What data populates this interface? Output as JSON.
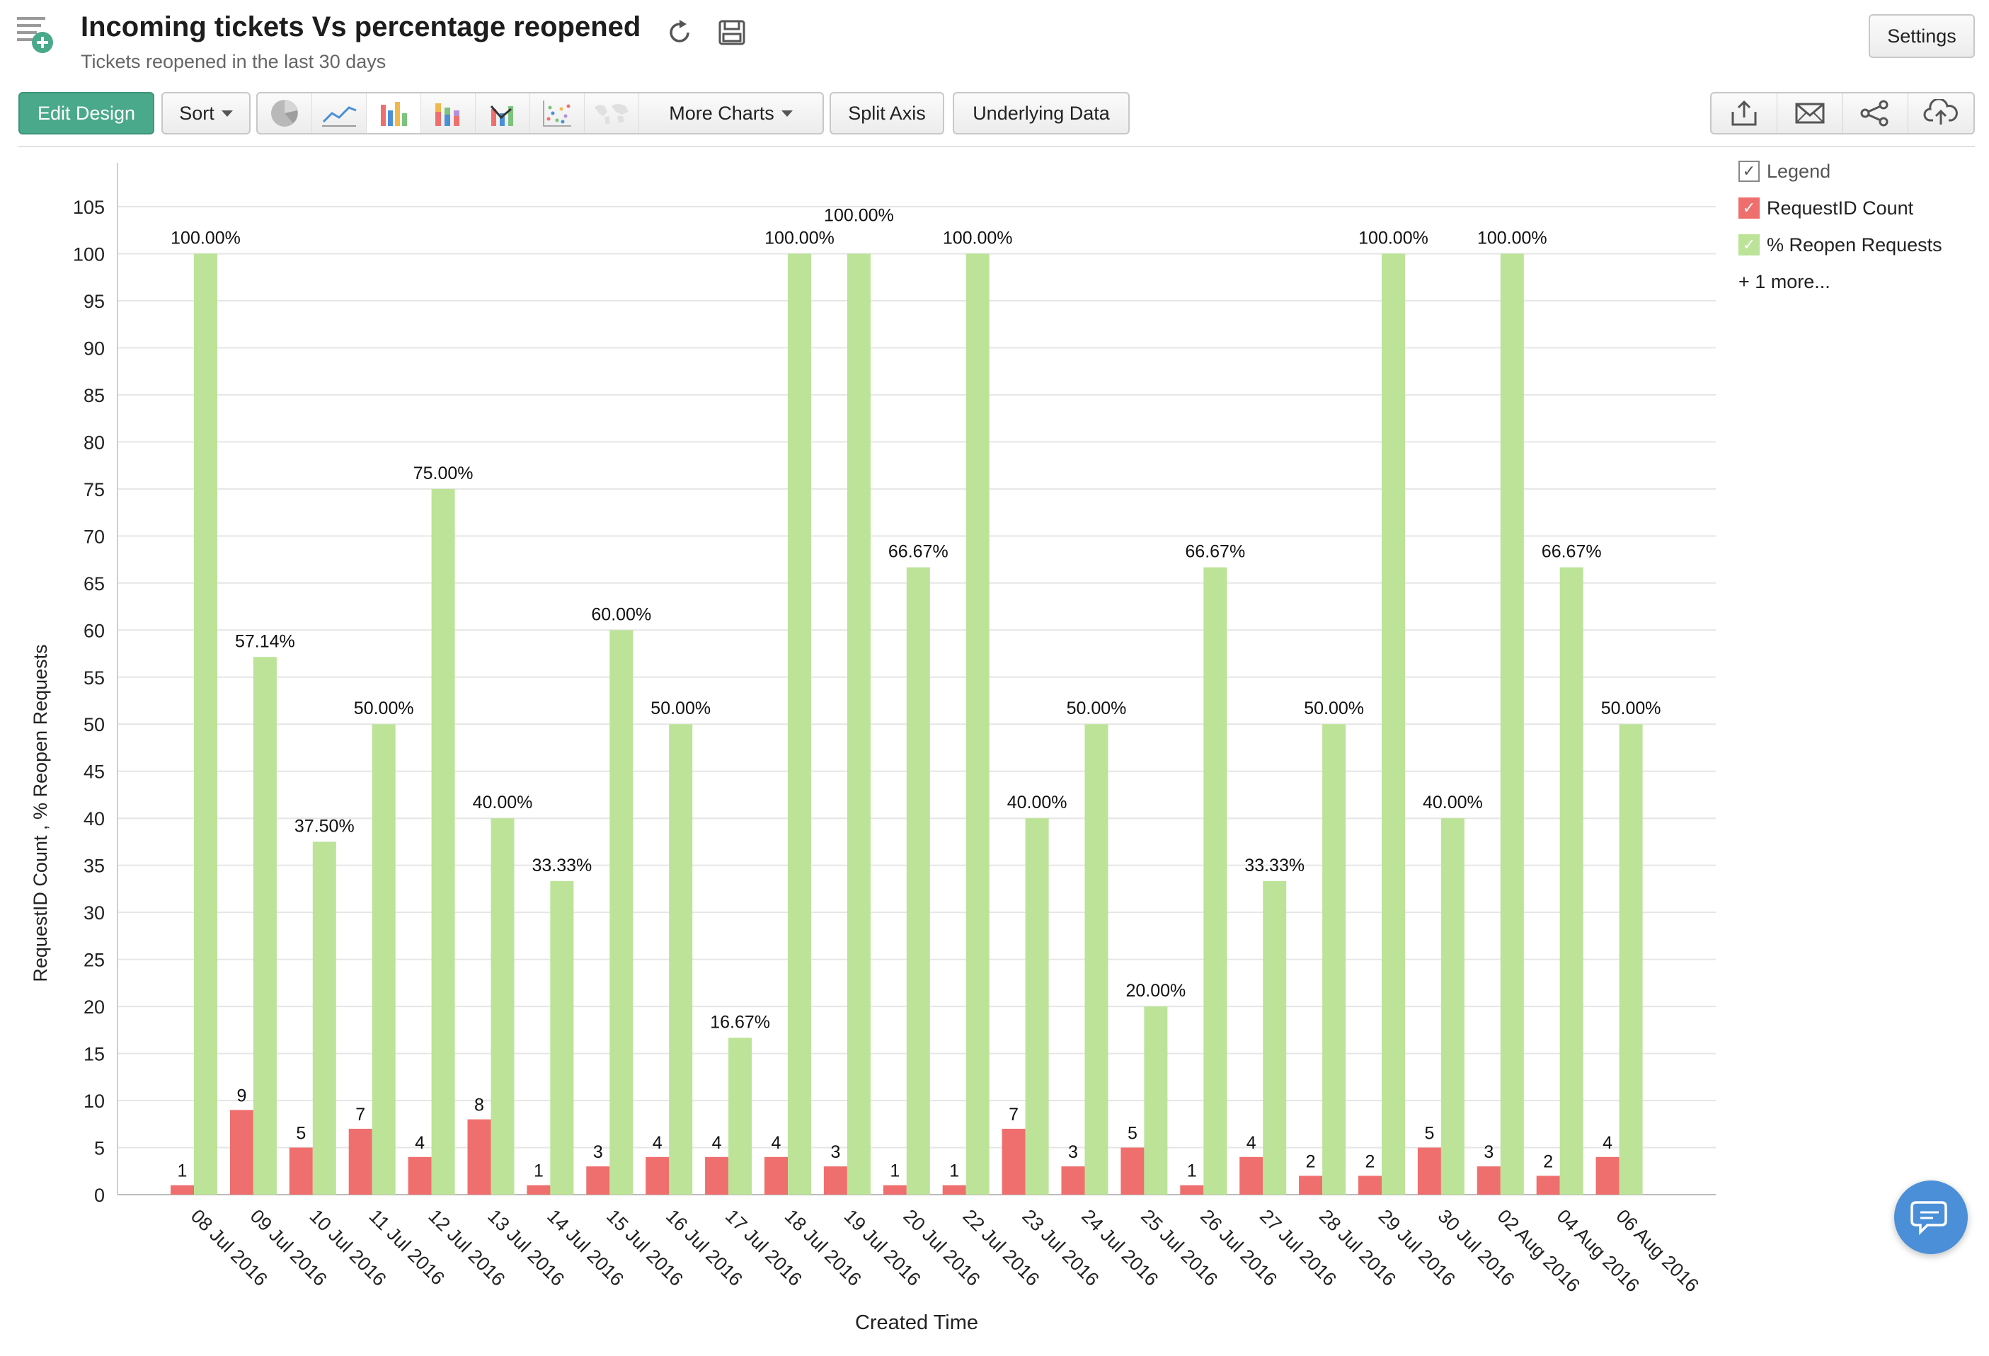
{
  "header": {
    "title": "Incoming tickets Vs percentage reopened",
    "subtitle": "Tickets reopened in the last 30 days",
    "settings_label": "Settings"
  },
  "toolbar": {
    "edit_design_label": "Edit Design",
    "sort_label": "Sort",
    "more_charts_label": "More Charts",
    "split_axis_label": "Split Axis",
    "underlying_data_label": "Underlying Data",
    "chart_type_icons": [
      "pie-chart-icon",
      "line-chart-icon",
      "bar-chart-icon",
      "stacked-bar-chart-icon",
      "combo-chart-icon",
      "scatter-chart-icon",
      "map-chart-icon"
    ],
    "action_icons": [
      "export-icon",
      "email-icon",
      "share-icon",
      "cloud-upload-icon"
    ]
  },
  "legend": {
    "title": "Legend",
    "more": "+ 1 more...",
    "items": [
      {
        "label": "RequestID Count",
        "color": "#ef6f6e"
      },
      {
        "label": "% Reopen Requests",
        "color": "#bce397"
      }
    ]
  },
  "chart_data": {
    "type": "bar",
    "xlabel": "Created Time",
    "ylabel": "RequestID Count , % Reopen Requests",
    "ylim": [
      0,
      105
    ],
    "ytick_step": 5,
    "grid": true,
    "legend_position": "top-right",
    "categories": [
      "08 Jul 2016",
      "09 Jul 2016",
      "10 Jul 2016",
      "11 Jul 2016",
      "12 Jul 2016",
      "13 Jul 2016",
      "14 Jul 2016",
      "15 Jul 2016",
      "16 Jul 2016",
      "17 Jul 2016",
      "18 Jul 2016",
      "19 Jul 2016",
      "20 Jul 2016",
      "22 Jul 2016",
      "23 Jul 2016",
      "24 Jul 2016",
      "25 Jul 2016",
      "26 Jul 2016",
      "27 Jul 2016",
      "28 Jul 2016",
      "29 Jul 2016",
      "30 Jul 2016",
      "02 Aug 2016",
      "04 Aug 2016",
      "06 Aug 2016"
    ],
    "series": [
      {
        "name": "RequestID Count",
        "color": "#ef6f6e",
        "values": [
          1,
          9,
          5,
          7,
          4,
          8,
          1,
          3,
          4,
          4,
          4,
          3,
          1,
          1,
          7,
          3,
          5,
          1,
          4,
          2,
          2,
          5,
          3,
          2,
          4
        ],
        "labels": [
          "1",
          "9",
          "5",
          "7",
          "4",
          "8",
          "1",
          "3",
          "4",
          "4",
          "4",
          "3",
          "1",
          "1",
          "7",
          "3",
          "5",
          "1",
          "4",
          "2",
          "2",
          "5",
          "3",
          "2",
          "4"
        ]
      },
      {
        "name": "% Reopen Requests",
        "color": "#bce397",
        "values": [
          100,
          57.14,
          37.5,
          50,
          75,
          40,
          33.33,
          60,
          50,
          16.67,
          100,
          100,
          66.67,
          100,
          40,
          50,
          20,
          66.67,
          33.33,
          50,
          100,
          40,
          100,
          66.67,
          50
        ],
        "labels": [
          "100.00%",
          "57.14%",
          "37.50%",
          "50.00%",
          "75.00%",
          "40.00%",
          "33.33%",
          "60.00%",
          "50.00%",
          "16.67%",
          "100.00%",
          "100.00%",
          "66.67%",
          "100.00%",
          "40.00%",
          "50.00%",
          "20.00%",
          "66.67%",
          "33.33%",
          "50.00%",
          "100.00%",
          "40.00%",
          "100.00%",
          "66.67%",
          "50.00%"
        ]
      }
    ]
  }
}
